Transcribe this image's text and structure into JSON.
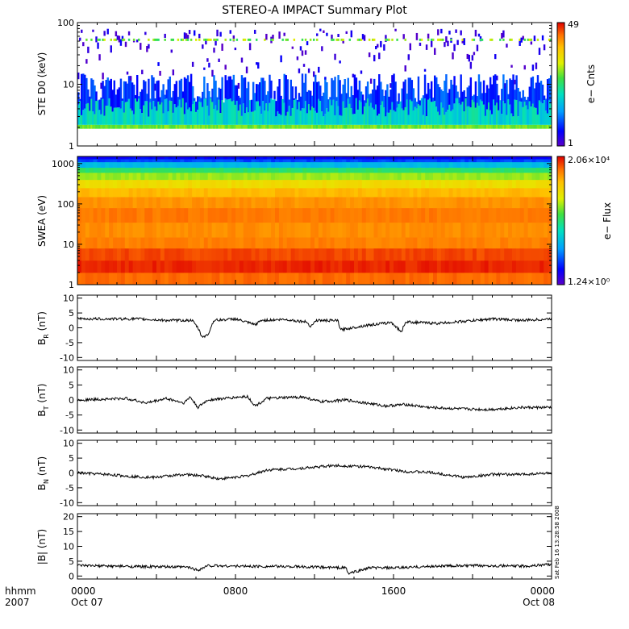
{
  "title": "STEREO-A IMPACT Summary Plot",
  "timestamp": "Sat Feb 16 13:28:58 2008",
  "colors": {
    "background": "#ffffff",
    "line": "#000000",
    "colormap": [
      "#5a00c8",
      "#0000ff",
      "#00a0ff",
      "#00e0c0",
      "#40e040",
      "#e0f000",
      "#ffc000",
      "#ff7000",
      "#e00000"
    ]
  },
  "chart_data": [
    {
      "type": "heatmap",
      "panel": "ste",
      "ylabel": "STE D0 (keV)",
      "yscale": "log",
      "ylim": [
        1,
        100
      ],
      "y_ticks": [
        "1",
        "10",
        "100"
      ],
      "colorbar": {
        "label": "e− Cnts",
        "max_label": "49",
        "min_label": "1",
        "range": [
          1,
          49
        ]
      }
    },
    {
      "type": "heatmap",
      "panel": "swea",
      "ylabel": "SWEA (eV)",
      "yscale": "log",
      "ylim": [
        1,
        1500
      ],
      "y_ticks": [
        "1",
        "10",
        "100",
        "1000"
      ],
      "colorbar": {
        "label": "e− Flux",
        "max_label": "2.06×10⁴",
        "min_label": "1.24×10⁰",
        "range": [
          1.24,
          20600
        ]
      }
    },
    {
      "type": "line",
      "panel": "br",
      "ylabel_main": "B",
      "ylabel_sub": "R",
      "ylabel_unit": " (nT)",
      "ylim": [
        -11,
        11
      ],
      "y_ticks": [
        -10,
        -5,
        0,
        5,
        10
      ],
      "series": [
        {
          "values": [
            [
              0,
              3
            ],
            [
              1.5,
              3
            ],
            [
              3,
              3
            ],
            [
              4.5,
              2.5
            ],
            [
              5.8,
              2.5
            ],
            [
              6.1,
              0
            ],
            [
              6.3,
              -3
            ],
            [
              6.6,
              -2.5
            ],
            [
              6.9,
              2.5
            ],
            [
              8,
              3
            ],
            [
              9,
              1
            ],
            [
              9.3,
              2.5
            ],
            [
              10.5,
              2.8
            ],
            [
              11.6,
              2
            ],
            [
              11.8,
              0.5
            ],
            [
              12.1,
              2.5
            ],
            [
              13.2,
              2.4
            ],
            [
              13.3,
              -0.7
            ],
            [
              14.6,
              0.8
            ],
            [
              15.9,
              1.8
            ],
            [
              16.4,
              -1.4
            ],
            [
              16.6,
              2
            ],
            [
              18.2,
              1.5
            ],
            [
              19.6,
              2.2
            ],
            [
              21,
              3
            ],
            [
              22.6,
              2.5
            ],
            [
              24,
              3
            ]
          ]
        }
      ]
    },
    {
      "type": "line",
      "panel": "bt",
      "ylabel_main": "B",
      "ylabel_sub": "T",
      "ylabel_unit": " (nT)",
      "ylim": [
        -11,
        11
      ],
      "y_ticks": [
        -10,
        -5,
        0,
        5,
        10
      ],
      "series": [
        {
          "values": [
            [
              0,
              0
            ],
            [
              2.5,
              0.5
            ],
            [
              3.5,
              -1
            ],
            [
              4.5,
              0.5
            ],
            [
              5.4,
              -1
            ],
            [
              5.7,
              1
            ],
            [
              6.1,
              -2.5
            ],
            [
              6.6,
              0
            ],
            [
              8.6,
              1.2
            ],
            [
              9,
              -2
            ],
            [
              9.6,
              0.5
            ],
            [
              11.4,
              1
            ],
            [
              12.3,
              -0.6
            ],
            [
              13.6,
              0
            ],
            [
              14.6,
              -1
            ],
            [
              15.6,
              -2
            ],
            [
              16.6,
              -1.5
            ],
            [
              17.8,
              -2.5
            ],
            [
              19.5,
              -3
            ],
            [
              20.8,
              -3.2
            ],
            [
              22.4,
              -2.5
            ],
            [
              24,
              -2.5
            ]
          ]
        }
      ]
    },
    {
      "type": "line",
      "panel": "bn",
      "ylabel_main": "B",
      "ylabel_sub": "N",
      "ylabel_unit": " (nT)",
      "ylim": [
        -11,
        11
      ],
      "y_ticks": [
        -10,
        -5,
        0,
        5,
        10
      ],
      "series": [
        {
          "values": [
            [
              0,
              0
            ],
            [
              1.5,
              -0.5
            ],
            [
              2.8,
              -1.2
            ],
            [
              3.9,
              -1.5
            ],
            [
              4.6,
              -1
            ],
            [
              5.4,
              -0.5
            ],
            [
              6.4,
              -1
            ],
            [
              7.2,
              -2
            ],
            [
              8.6,
              -1
            ],
            [
              9.6,
              1
            ],
            [
              11.2,
              1.5
            ],
            [
              13,
              2.5
            ],
            [
              14.4,
              2.2
            ],
            [
              15.4,
              1.5
            ],
            [
              16.6,
              0.5
            ],
            [
              17.8,
              0.2
            ],
            [
              18.6,
              -0.5
            ],
            [
              19.6,
              -1.5
            ],
            [
              21,
              -0.5
            ],
            [
              22.4,
              -0.5
            ],
            [
              24,
              0
            ]
          ]
        }
      ]
    },
    {
      "type": "line",
      "panel": "bmag",
      "ylabel": "|B| (nT)",
      "ylim": [
        -1,
        21
      ],
      "y_ticks": [
        0,
        5,
        10,
        15,
        20
      ],
      "series": [
        {
          "values": [
            [
              0,
              3.5
            ],
            [
              3,
              3.2
            ],
            [
              5.6,
              3
            ],
            [
              6.1,
              2
            ],
            [
              6.6,
              3.5
            ],
            [
              8.4,
              3.3
            ],
            [
              10.8,
              3.2
            ],
            [
              12,
              3
            ],
            [
              13.6,
              2.8
            ],
            [
              13.7,
              0.8
            ],
            [
              14.8,
              2.8
            ],
            [
              16,
              2.7
            ],
            [
              18.4,
              3.4
            ],
            [
              20.8,
              3.5
            ],
            [
              22.6,
              3.3
            ],
            [
              24,
              4
            ]
          ]
        }
      ]
    }
  ],
  "x_axis": {
    "xlim": [
      0,
      24
    ],
    "tick_hours": [
      0,
      8,
      16,
      24
    ],
    "labels_time": [
      "0000",
      "0800",
      "1600",
      "0000"
    ],
    "labels_date": [
      "Oct 07",
      "",
      "",
      "Oct 08"
    ],
    "corner_label_time": "hhmm",
    "corner_label_year": "2007"
  }
}
